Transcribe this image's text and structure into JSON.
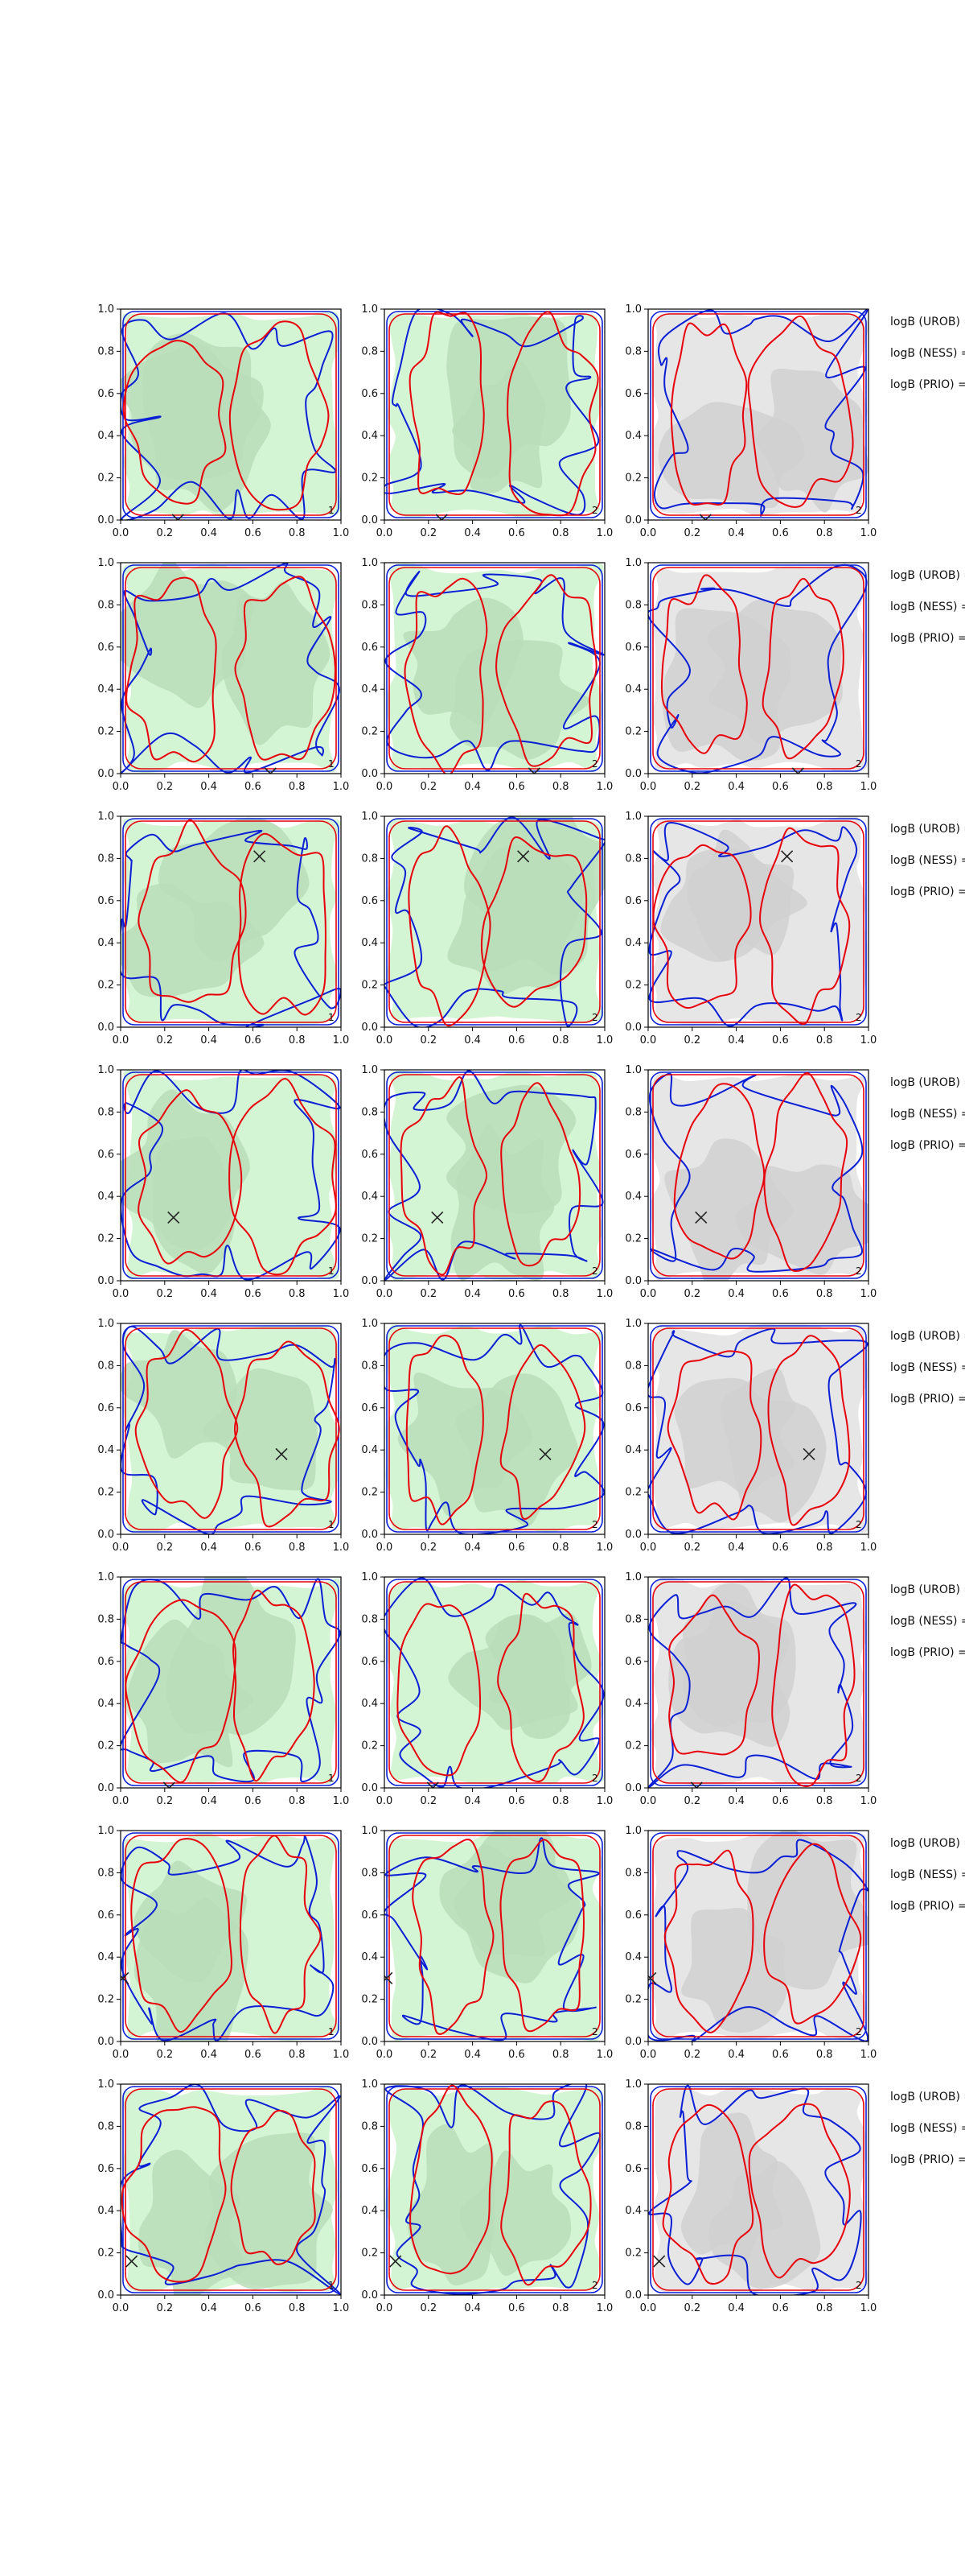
{
  "figure": {
    "side_labels": [
      "logB (UROB) =",
      "logB (NESS) =",
      "logB (PRIO) ="
    ]
  },
  "colors": {
    "green_light": "#d4f5d4",
    "green_mid": "#b9ddb9",
    "gray_light": "#e6e6e6",
    "gray_mid": "#d0d0d0",
    "contour_red": "#e8000b",
    "contour_blue": "#0a1fd6",
    "marker": "#222222"
  },
  "chart_data": {
    "type": "contour",
    "xlim": [
      0,
      1
    ],
    "ylim": [
      0,
      1
    ],
    "xticks": [
      "0.0",
      "0.2",
      "0.4",
      "0.6",
      "0.8",
      "1.0"
    ],
    "yticks": [
      "0.0",
      "0.2",
      "0.4",
      "0.6",
      "0.8",
      "1.0"
    ],
    "column_backgrounds": [
      "green",
      "green",
      "gray"
    ],
    "corner_labels": [
      "1",
      "2",
      "2"
    ],
    "rows": [
      {
        "marker": [
          0.26,
          0.0
        ]
      },
      {
        "marker": [
          0.68,
          0.0
        ]
      },
      {
        "marker": [
          0.63,
          0.81
        ]
      },
      {
        "marker": [
          0.24,
          0.3
        ]
      },
      {
        "marker": [
          0.73,
          0.38
        ]
      },
      {
        "marker": [
          0.22,
          0.0
        ]
      },
      {
        "marker": [
          0.01,
          0.3
        ]
      },
      {
        "marker": [
          0.05,
          0.16
        ]
      }
    ]
  }
}
